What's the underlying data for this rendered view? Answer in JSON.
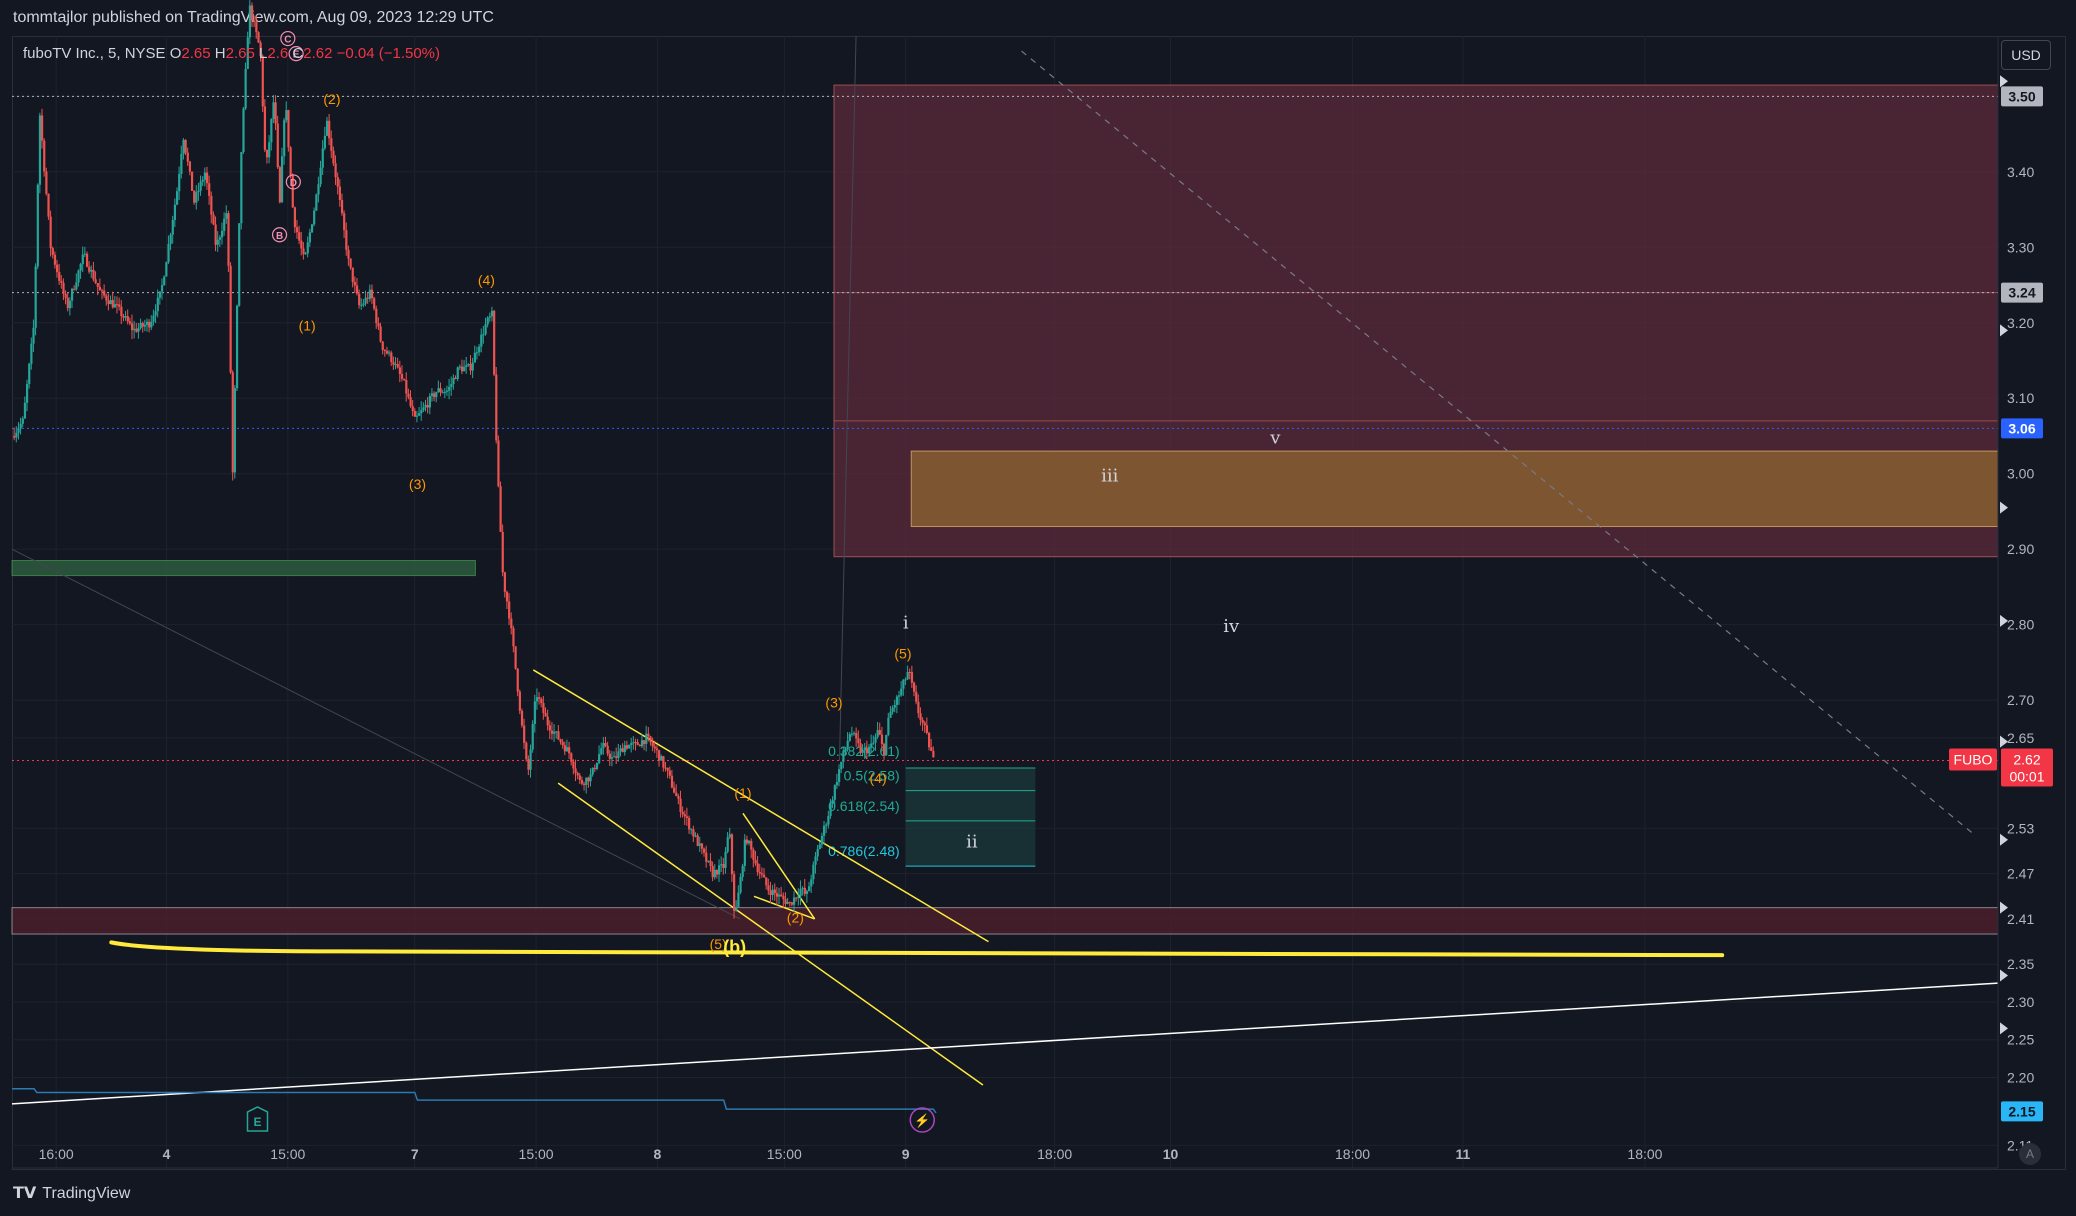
{
  "header": {
    "publisher": "tommtajlor published on TradingView.com, Aug 09, 2023 12:29 UTC"
  },
  "legend": {
    "name": "fuboTV Inc., 5, NYSE",
    "o_label": "O",
    "o_value": "2.65",
    "h_label": "H",
    "h_value": "2.65",
    "l_label": "L",
    "l_value": "2.6",
    "c_label": "C",
    "c_value": "2.62",
    "change": "−0.04 (−1.50%)"
  },
  "currency_button": "USD",
  "footer": {
    "brand": "TradingView",
    "auto_button": "A"
  },
  "colors": {
    "background": "#131722",
    "grid": "#1e222d",
    "up": "#26a69a",
    "down": "#ef5350",
    "wave_label": "#ff9800",
    "channel": "#ffeb3b",
    "price_badge": "#f23645",
    "resistance_zone": "#5c2a3a",
    "target_zone": "#8b6130",
    "fib": "#22ab94"
  },
  "chart_data": {
    "type": "candlestick",
    "symbol": "FUBO",
    "interval": "5",
    "exchange": "NYSE",
    "ylim": [
      2.08,
      3.58
    ],
    "y_ticks": [
      "3.50",
      "3.40",
      "3.30",
      "3.20",
      "3.10",
      "3.00",
      "2.90",
      "2.80",
      "2.70",
      "2.65",
      "2.53",
      "2.47",
      "2.41",
      "2.35",
      "2.30",
      "2.25",
      "2.20",
      "2.11"
    ],
    "x_ticks": [
      {
        "label": "16:00",
        "t": 0.8
      },
      {
        "label": "4",
        "t": 2.8
      },
      {
        "label": "15:00",
        "t": 5.0
      },
      {
        "label": "7",
        "t": 7.3
      },
      {
        "label": "15:00",
        "t": 9.5
      },
      {
        "label": "8",
        "t": 11.7
      },
      {
        "label": "15:00",
        "t": 14.0
      },
      {
        "label": "9",
        "t": 16.2
      },
      {
        "label": "18:00",
        "t": 18.9
      },
      {
        "label": "10",
        "t": 21.0
      },
      {
        "label": "18:00",
        "t": 24.3
      },
      {
        "label": "11",
        "t": 26.3
      },
      {
        "label": "18:00",
        "t": 29.6
      }
    ],
    "x_range": [
      0,
      36
    ],
    "price_path": [
      [
        0,
        3.05
      ],
      [
        0.2,
        3.07
      ],
      [
        0.4,
        3.2
      ],
      [
        0.5,
        3.48
      ],
      [
        0.7,
        3.3
      ],
      [
        1.0,
        3.22
      ],
      [
        1.3,
        3.29
      ],
      [
        1.6,
        3.24
      ],
      [
        1.9,
        3.22
      ],
      [
        2.2,
        3.19
      ],
      [
        2.5,
        3.2
      ],
      [
        2.7,
        3.24
      ],
      [
        3.0,
        3.38
      ],
      [
        3.1,
        3.45
      ],
      [
        3.3,
        3.36
      ],
      [
        3.5,
        3.4
      ],
      [
        3.7,
        3.3
      ],
      [
        3.9,
        3.35
      ],
      [
        4.0,
        3.0
      ],
      [
        4.15,
        3.42
      ],
      [
        4.3,
        3.62
      ],
      [
        4.5,
        3.56
      ],
      [
        4.6,
        3.4
      ],
      [
        4.75,
        3.5
      ],
      [
        4.85,
        3.35
      ],
      [
        4.95,
        3.5
      ],
      [
        5.1,
        3.34
      ],
      [
        5.3,
        3.28
      ],
      [
        5.5,
        3.36
      ],
      [
        5.7,
        3.47
      ],
      [
        5.9,
        3.38
      ],
      [
        6.1,
        3.28
      ],
      [
        6.3,
        3.22
      ],
      [
        6.5,
        3.24
      ],
      [
        6.7,
        3.17
      ],
      [
        6.9,
        3.15
      ],
      [
        7.1,
        3.12
      ],
      [
        7.3,
        3.07
      ],
      [
        7.5,
        3.09
      ],
      [
        7.7,
        3.11
      ],
      [
        7.9,
        3.11
      ],
      [
        8.1,
        3.14
      ],
      [
        8.3,
        3.14
      ],
      [
        8.45,
        3.17
      ],
      [
        8.6,
        3.2
      ],
      [
        8.7,
        3.21
      ],
      [
        8.8,
        3.0
      ],
      [
        8.9,
        2.86
      ],
      [
        9.0,
        2.82
      ],
      [
        9.1,
        2.76
      ],
      [
        9.25,
        2.66
      ],
      [
        9.35,
        2.6
      ],
      [
        9.5,
        2.71
      ],
      [
        9.7,
        2.67
      ],
      [
        9.9,
        2.65
      ],
      [
        10.1,
        2.63
      ],
      [
        10.3,
        2.59
      ],
      [
        10.5,
        2.6
      ],
      [
        10.7,
        2.64
      ],
      [
        10.9,
        2.62
      ],
      [
        11.1,
        2.64
      ],
      [
        11.3,
        2.64
      ],
      [
        11.5,
        2.65
      ],
      [
        11.7,
        2.63
      ],
      [
        11.9,
        2.6
      ],
      [
        12.1,
        2.56
      ],
      [
        12.3,
        2.53
      ],
      [
        12.5,
        2.5
      ],
      [
        12.7,
        2.47
      ],
      [
        12.9,
        2.48
      ],
      [
        13.0,
        2.53
      ],
      [
        13.1,
        2.41
      ],
      [
        13.2,
        2.46
      ],
      [
        13.3,
        2.52
      ],
      [
        13.5,
        2.48
      ],
      [
        13.7,
        2.45
      ],
      [
        13.9,
        2.44
      ],
      [
        14.1,
        2.43
      ],
      [
        14.3,
        2.45
      ],
      [
        14.4,
        2.44
      ],
      [
        14.6,
        2.5
      ],
      [
        14.8,
        2.55
      ],
      [
        15.0,
        2.61
      ],
      [
        15.2,
        2.66
      ],
      [
        15.4,
        2.63
      ],
      [
        15.6,
        2.64
      ],
      [
        15.7,
        2.66
      ],
      [
        15.8,
        2.63
      ],
      [
        15.9,
        2.68
      ],
      [
        16.1,
        2.71
      ],
      [
        16.25,
        2.74
      ],
      [
        16.4,
        2.69
      ],
      [
        16.55,
        2.66
      ],
      [
        16.7,
        2.62
      ]
    ],
    "horizontal_levels": [
      {
        "price": 3.5,
        "label": "3.50",
        "style": "dotted",
        "color": "#b2b5be"
      },
      {
        "price": 3.24,
        "label": "3.24",
        "style": "dotted",
        "color": "#b2b5be"
      },
      {
        "price": 3.06,
        "label": "3.06",
        "style": "dotted",
        "color": "#2962ff"
      },
      {
        "price": 2.62,
        "label": "2.62",
        "style": "dotted",
        "color": "#f23645"
      }
    ],
    "current_price": {
      "symbol": "FUBO",
      "price": "2.62",
      "countdown": "00:01"
    },
    "secondary_line_badge": "2.15",
    "zones": [
      {
        "name": "resistance",
        "t0": 14.9,
        "t1": 36,
        "p_top": 3.515,
        "p_bottom": 2.89,
        "color": "#5c2a3a"
      },
      {
        "name": "target",
        "t0": 16.3,
        "t1": 36,
        "p_top": 3.03,
        "p_bottom": 2.93,
        "color": "#8b6130"
      },
      {
        "name": "support",
        "t0": 0,
        "t1": 36,
        "p_top": 2.425,
        "p_bottom": 2.39,
        "color": "#4a1e2c"
      },
      {
        "name": "green-block",
        "t0": 0,
        "t1": 8.4,
        "p_top": 2.885,
        "p_bottom": 2.865,
        "color": "#2e5a3f"
      }
    ],
    "fib_levels": [
      {
        "label": "0.382(2.61)",
        "price": 2.61
      },
      {
        "label": "0.5(2.58)",
        "price": 2.58
      },
      {
        "label": "0.618(2.54)",
        "price": 2.54
      },
      {
        "label": "0.786(2.48)",
        "price": 2.48
      }
    ],
    "wave_labels": [
      {
        "text": "(2)",
        "t": 5.8,
        "p": 3.49,
        "color": "#ff9800"
      },
      {
        "text": "(1)",
        "t": 5.35,
        "p": 3.19,
        "color": "#ff9800"
      },
      {
        "text": "(4)",
        "t": 8.6,
        "p": 3.25,
        "color": "#ff9800"
      },
      {
        "text": "(3)",
        "t": 7.35,
        "p": 2.98,
        "color": "#ff9800"
      },
      {
        "text": "(5)",
        "t": 12.8,
        "p": 2.37,
        "color": "#ff9800"
      },
      {
        "text": "(1)",
        "t": 13.25,
        "p": 2.57,
        "color": "#ff9800"
      },
      {
        "text": "(2)",
        "t": 14.2,
        "p": 2.405,
        "color": "#ff9800"
      },
      {
        "text": "(3)",
        "t": 14.9,
        "p": 2.69,
        "color": "#ff9800"
      },
      {
        "text": "(4)",
        "t": 15.7,
        "p": 2.59,
        "color": "#ff9800"
      },
      {
        "text": "(5)",
        "t": 16.15,
        "p": 2.755,
        "color": "#ff9800"
      },
      {
        "text": "(b)",
        "t": 13.1,
        "p": 2.365,
        "color": "#ffeb3b"
      },
      {
        "text": "i",
        "t": 16.2,
        "p": 2.795,
        "color": "#d1d4dc"
      },
      {
        "text": "ii",
        "t": 17.4,
        "p": 2.505,
        "color": "#d1d4dc"
      },
      {
        "text": "iii",
        "t": 19.9,
        "p": 2.99,
        "color": "#d1d4dc"
      },
      {
        "text": "iv",
        "t": 22.1,
        "p": 2.79,
        "color": "#d1d4dc"
      },
      {
        "text": "v",
        "t": 22.9,
        "p": 3.04,
        "color": "#d1d4dc"
      },
      {
        "text": "B",
        "t": 4.85,
        "p": 3.31,
        "color": "#f48fb1"
      },
      {
        "text": "D",
        "t": 5.1,
        "p": 3.38,
        "color": "#f48fb1"
      },
      {
        "text": "C",
        "t": 5.0,
        "p": 3.57,
        "color": "#f48fb1"
      },
      {
        "text": "E",
        "t": 5.15,
        "p": 3.55,
        "color": "#f48fb1"
      }
    ],
    "event_markers": [
      {
        "type": "earnings",
        "label": "E",
        "t": 4.45
      },
      {
        "type": "split",
        "label": "⚡",
        "t": 16.5
      }
    ]
  }
}
